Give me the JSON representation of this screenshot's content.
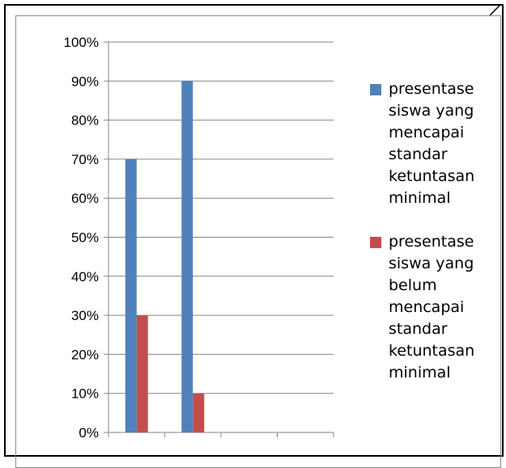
{
  "chart_data": {
    "type": "bar",
    "categories": [
      "",
      "",
      "",
      ""
    ],
    "series": [
      {
        "name": "presentase siswa yang mencapai standar ketuntasan minimal",
        "color": "#4f81bd",
        "values": [
          70,
          90,
          null,
          null
        ]
      },
      {
        "name": "presentase siswa yang belum mencapai standar ketuntasan minimal",
        "color": "#c0504d",
        "values": [
          30,
          10,
          null,
          null
        ]
      }
    ],
    "yticks": [
      "0%",
      "10%",
      "20%",
      "30%",
      "40%",
      "50%",
      "60%",
      "70%",
      "80%",
      "90%",
      "100%"
    ],
    "ylim": [
      0,
      100
    ],
    "grid": true,
    "legend_position": "right"
  }
}
